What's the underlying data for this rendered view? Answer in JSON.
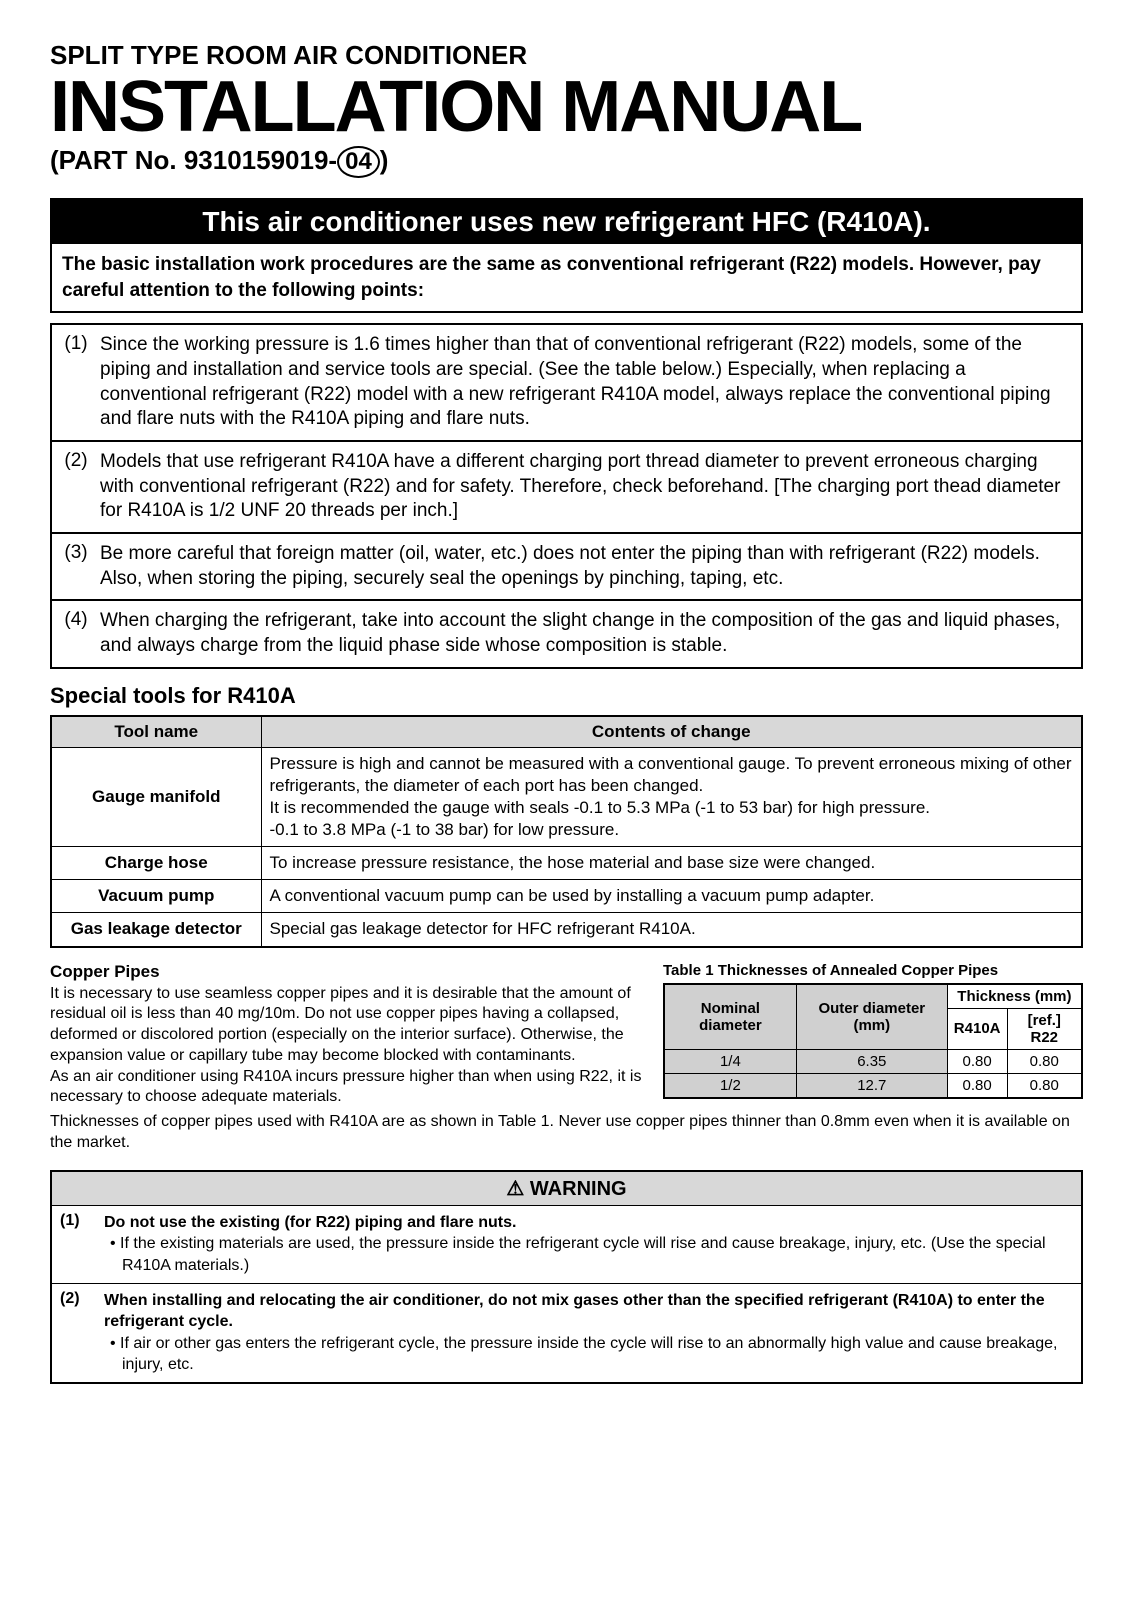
{
  "header": {
    "pre_title": "SPLIT TYPE ROOM AIR CONDITIONER",
    "main_title": "INSTALLATION MANUAL",
    "part_prefix": "(PART No. 9310159019-",
    "part_rev": "04",
    "part_suffix": ")"
  },
  "banner": "This air conditioner uses new refrigerant HFC (R410A).",
  "intro": "The basic installation work procedures are the same as conventional refrigerant (R22) models. However, pay careful attention to the following points:",
  "points": [
    {
      "num": "(1)",
      "text": "Since the working pressure is 1.6 times higher than that of conventional refrigerant (R22) models, some of the piping and installation and service tools are special. (See the table below.) Especially, when replacing a conventional refrigerant (R22) model with a new refrigerant R410A model, always replace the conventional piping and flare nuts with the R410A piping and flare nuts."
    },
    {
      "num": "(2)",
      "text": "Models that use refrigerant R410A have a different charging port thread diameter to prevent erroneous charging with conventional refrigerant (R22) and for safety. Therefore, check beforehand. [The charging port thead diameter for R410A is 1/2 UNF 20 threads per inch.]"
    },
    {
      "num": "(3)",
      "text": "Be more careful that foreign matter (oil, water, etc.) does not enter the piping than with refrigerant (R22) models.\nAlso, when storing the piping, securely seal the openings by pinching, taping, etc."
    },
    {
      "num": "(4)",
      "text": "When charging the refrigerant, take into account the slight change in the composition of the gas and liquid phases, and always charge from the liquid phase side whose composition is stable."
    }
  ],
  "tools": {
    "heading": "Special tools for R410A",
    "col_name": "Tool name",
    "col_change": "Contents of change",
    "rows": [
      {
        "name": "Gauge manifold",
        "desc": "Pressure is high and cannot be measured with a conventional gauge. To prevent erroneous mixing of other refrigerants, the diameter of each port has been changed.\nIt is recommended the gauge with seals -0.1 to 5.3 MPa (-1 to 53 bar) for high pressure.\n-0.1 to 3.8 MPa (-1 to 38 bar) for low pressure."
      },
      {
        "name": "Charge hose",
        "desc": "To increase pressure resistance, the hose material and base size were changed."
      },
      {
        "name": "Vacuum pump",
        "desc": "A conventional vacuum pump can be used by installing a vacuum pump adapter."
      },
      {
        "name": "Gas leakage detector",
        "desc": "Special gas leakage detector for HFC refrigerant R410A."
      }
    ]
  },
  "copper": {
    "heading": "Copper Pipes",
    "para1": "It is necessary to use seamless copper pipes and it is desirable that the amount of residual oil is less than 40 mg/10m. Do not use copper pipes having a collapsed, deformed or discolored portion (especially on the interior surface). Otherwise, the expansion value or capillary tube may become blocked with contaminants.",
    "para2": "As an air conditioner using R410A incurs pressure higher than when using R22, it is necessary to choose adequate materials.",
    "bottom": "Thicknesses of copper pipes used with R410A are as shown in Table 1. Never use copper pipes thinner than 0.8mm even when it is available on the market.",
    "table_caption": "Table 1   Thicknesses of Annealed Copper Pipes",
    "th_thickness": "Thickness (mm)",
    "th_nominal": "Nominal diameter",
    "th_outer": "Outer diameter (mm)",
    "th_r410a": "R410A",
    "th_r22": "[ref.] R22",
    "rows": [
      {
        "nominal": "1/4",
        "outer": "6.35",
        "r410a": "0.80",
        "r22": "0.80"
      },
      {
        "nominal": "1/2",
        "outer": "12.7",
        "r410a": "0.80",
        "r22": "0.80"
      }
    ]
  },
  "warning": {
    "header": "⚠ WARNING",
    "items": [
      {
        "num": "(1)",
        "lead": "Do not use the existing (for R22) piping and flare nuts.",
        "bullet": "• If the existing materials are used, the pressure inside the refrigerant cycle will rise and cause breakage, injury, etc. (Use the special R410A materials.)"
      },
      {
        "num": "(2)",
        "lead": "When installing and relocating the air conditioner, do not mix gases other than the specified refrigerant (R410A) to enter the refrigerant cycle.",
        "bullet": "• If air or other gas enters the refrigerant cycle, the pressure inside the cycle will rise to an abnormally high value and cause breakage, injury, etc."
      }
    ]
  }
}
